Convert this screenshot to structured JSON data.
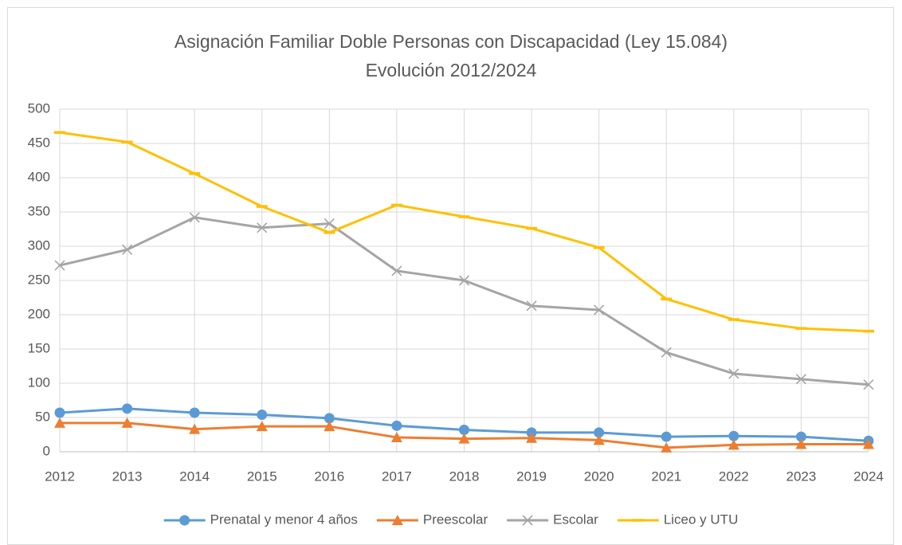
{
  "chart_data": {
    "type": "line",
    "title": "Asignación Familiar Doble Personas con Discapacidad (Ley 15.084)",
    "subtitle": "Evolución 2012/2024",
    "categories": [
      "2012",
      "2013",
      "2014",
      "2015",
      "2016",
      "2017",
      "2018",
      "2019",
      "2020",
      "2021",
      "2022",
      "2023",
      "2024"
    ],
    "series": [
      {
        "name": "Prenatal y menor 4 años",
        "color": "#5b9bd5",
        "marker": "circle",
        "values": [
          57,
          63,
          57,
          54,
          49,
          38,
          32,
          28,
          28,
          22,
          23,
          22,
          16
        ]
      },
      {
        "name": "Preescolar",
        "color": "#ed7d31",
        "marker": "triangle",
        "values": [
          42,
          42,
          33,
          37,
          37,
          21,
          19,
          20,
          17,
          6,
          10,
          11,
          11
        ]
      },
      {
        "name": "Escolar",
        "color": "#a5a5a5",
        "marker": "x",
        "values": [
          272,
          295,
          342,
          327,
          333,
          264,
          250,
          213,
          207,
          145,
          114,
          106,
          98
        ]
      },
      {
        "name": "Liceo y UTU",
        "color": "#ffc000",
        "marker": "dash",
        "values": [
          466,
          452,
          406,
          358,
          320,
          360,
          343,
          326,
          298,
          223,
          193,
          180,
          176
        ]
      }
    ],
    "ylim": [
      0,
      500
    ],
    "yticks": [
      0,
      50,
      100,
      150,
      200,
      250,
      300,
      350,
      400,
      450,
      500
    ],
    "grid": true,
    "legend": "bottom"
  }
}
